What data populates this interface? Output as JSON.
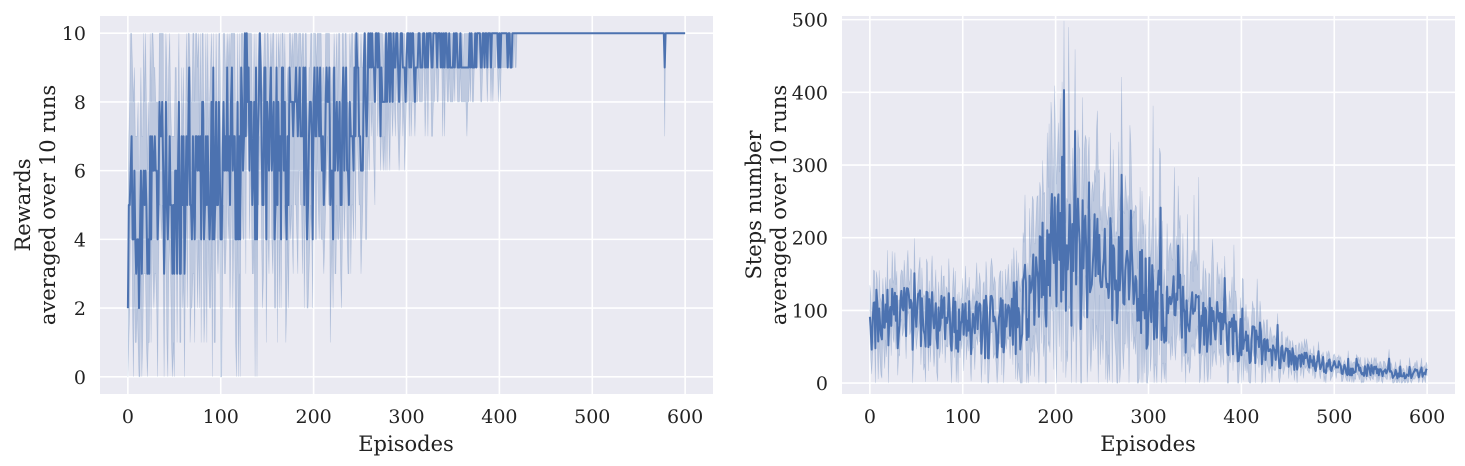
{
  "charts": [
    {
      "type": "line",
      "xlabel": "Episodes",
      "ylabel_lines": [
        "Rewards",
        "averaged over 10 runs"
      ],
      "xlim": [
        -30,
        630
      ],
      "ylim": [
        -0.5,
        10.5
      ],
      "xticks": [
        0,
        100,
        200,
        300,
        400,
        500,
        600
      ],
      "yticks": [
        0,
        2,
        4,
        6,
        8,
        10
      ],
      "grid": true,
      "line_color": "#4c72b0",
      "band_color": "#4c72b0",
      "anchors_mean": [
        [
          0,
          4.5
        ],
        [
          20,
          5.2
        ],
        [
          50,
          5.6
        ],
        [
          100,
          6.3
        ],
        [
          130,
          6.9
        ],
        [
          160,
          6.4
        ],
        [
          200,
          6.3
        ],
        [
          240,
          7.3
        ],
        [
          255,
          8.6
        ],
        [
          280,
          9.1
        ],
        [
          320,
          9.55
        ],
        [
          350,
          9.7
        ],
        [
          380,
          9.7
        ],
        [
          420,
          9.95
        ],
        [
          430,
          10
        ],
        [
          600,
          10
        ]
      ],
      "anchors_spread": [
        [
          0,
          3.2
        ],
        [
          100,
          3.3
        ],
        [
          200,
          3.1
        ],
        [
          250,
          2.6
        ],
        [
          300,
          1.8
        ],
        [
          350,
          1.2
        ],
        [
          400,
          1.1
        ],
        [
          430,
          0
        ],
        [
          600,
          0
        ]
      ],
      "amplitude": [
        [
          0,
          1.8
        ],
        [
          100,
          1.9
        ],
        [
          200,
          1.8
        ],
        [
          250,
          1.4
        ],
        [
          300,
          0.7
        ],
        [
          380,
          0.6
        ],
        [
          420,
          0.4
        ],
        [
          430,
          0
        ],
        [
          600,
          0
        ]
      ],
      "dips": [
        {
          "x": 578,
          "y": 9,
          "lo": 7
        }
      ]
    },
    {
      "type": "line",
      "xlabel": "Episodes",
      "ylabel_lines": [
        "Steps number",
        "averaged over 10 runs"
      ],
      "xlim": [
        -30,
        630
      ],
      "ylim": [
        -15,
        505
      ],
      "xticks": [
        0,
        100,
        200,
        300,
        400,
        500,
        600
      ],
      "yticks": [
        0,
        100,
        200,
        300,
        400,
        500
      ],
      "grid": true,
      "line_color": "#4c72b0",
      "band_color": "#4c72b0",
      "anchors_mean": [
        [
          0,
          90
        ],
        [
          50,
          88
        ],
        [
          100,
          82
        ],
        [
          140,
          75
        ],
        [
          160,
          95
        ],
        [
          180,
          140
        ],
        [
          200,
          175
        ],
        [
          220,
          165
        ],
        [
          250,
          155
        ],
        [
          270,
          140
        ],
        [
          300,
          110
        ],
        [
          350,
          85
        ],
        [
          400,
          60
        ],
        [
          450,
          35
        ],
        [
          500,
          22
        ],
        [
          550,
          15
        ],
        [
          600,
          14
        ]
      ],
      "anchors_spread": [
        [
          0,
          45
        ],
        [
          100,
          40
        ],
        [
          150,
          45
        ],
        [
          180,
          110
        ],
        [
          200,
          130
        ],
        [
          250,
          120
        ],
        [
          290,
          95
        ],
        [
          350,
          60
        ],
        [
          400,
          40
        ],
        [
          450,
          18
        ],
        [
          500,
          12
        ],
        [
          600,
          10
        ]
      ],
      "amplitude": [
        [
          0,
          28
        ],
        [
          100,
          25
        ],
        [
          150,
          30
        ],
        [
          200,
          60
        ],
        [
          250,
          55
        ],
        [
          300,
          40
        ],
        [
          350,
          28
        ],
        [
          400,
          20
        ],
        [
          450,
          10
        ],
        [
          500,
          6
        ],
        [
          600,
          5
        ]
      ],
      "dips": []
    }
  ]
}
